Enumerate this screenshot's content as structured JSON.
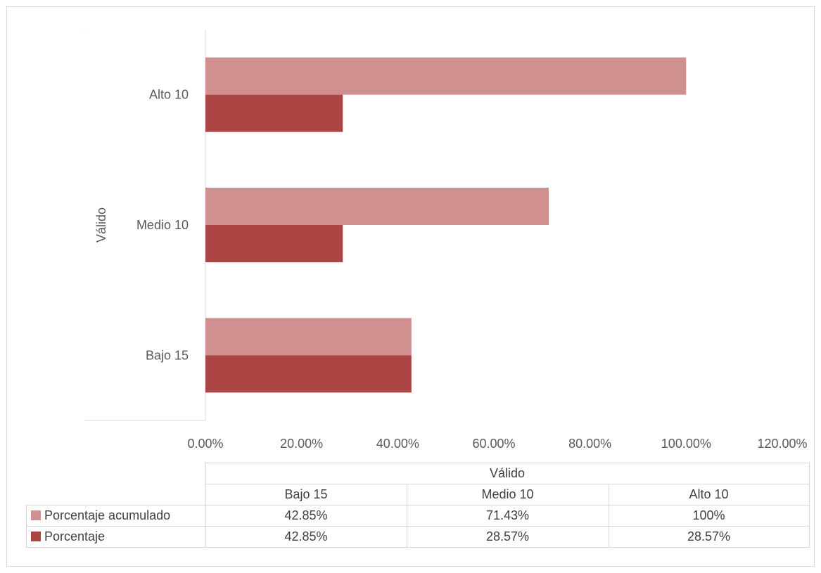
{
  "chart_data": {
    "type": "bar",
    "orientation": "horizontal",
    "group_axis_label": "Válido",
    "categories": [
      "Bajo 15",
      "Medio 10",
      "Alto 10"
    ],
    "series": [
      {
        "name": "Porcentaje acumulado",
        "color": "#d19090",
        "values": [
          42.85,
          71.43,
          100
        ],
        "value_labels": [
          "42.85%",
          "71.43%",
          "100%"
        ]
      },
      {
        "name": "Porcentaje",
        "color": "#ab4543",
        "values": [
          42.85,
          28.57,
          28.57
        ],
        "value_labels": [
          "42.85%",
          "28.57%",
          "28.57%"
        ]
      }
    ],
    "xlim": [
      0,
      120
    ],
    "x_ticks": [
      "0.00%",
      "20.00%",
      "40.00%",
      "60.00%",
      "80.00%",
      "100.00%",
      "120.00%"
    ],
    "grid": false,
    "legend": "data-table"
  }
}
